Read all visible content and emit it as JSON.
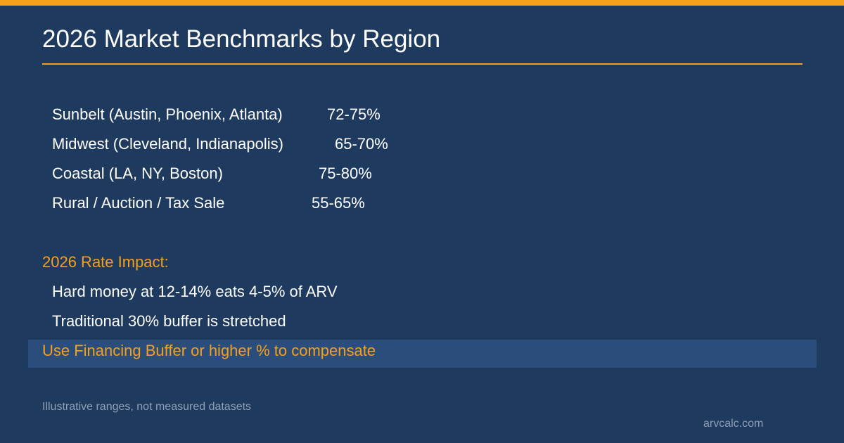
{
  "header": {
    "title": "2026 Market Benchmarks by Region"
  },
  "regions": [
    {
      "name": "Sunbelt (Austin, Phoenix, Atlanta)",
      "range": "72-75%"
    },
    {
      "name": "Midwest (Cleveland, Indianapolis)",
      "range": "65-70%"
    },
    {
      "name": "Coastal (LA, NY, Boston)",
      "range": "75-80%"
    },
    {
      "name": "Rural / Auction / Tax Sale",
      "range": "55-65%"
    }
  ],
  "rate_impact": {
    "heading": "2026 Rate Impact:",
    "notes": [
      "Hard money at 12-14% eats 4-5% of ARV",
      "Traditional 30% buffer is stretched"
    ],
    "highlight": "Use Financing Buffer or higher % to compensate"
  },
  "footer": {
    "disclaimer": "Illustrative ranges, not measured datasets",
    "site": "arvcalc.com"
  },
  "colors": {
    "background": "#1f3a5f",
    "accent": "#f5a01a",
    "highlight_band": "#2b4d7b",
    "muted_text": "#8fa0b5"
  }
}
